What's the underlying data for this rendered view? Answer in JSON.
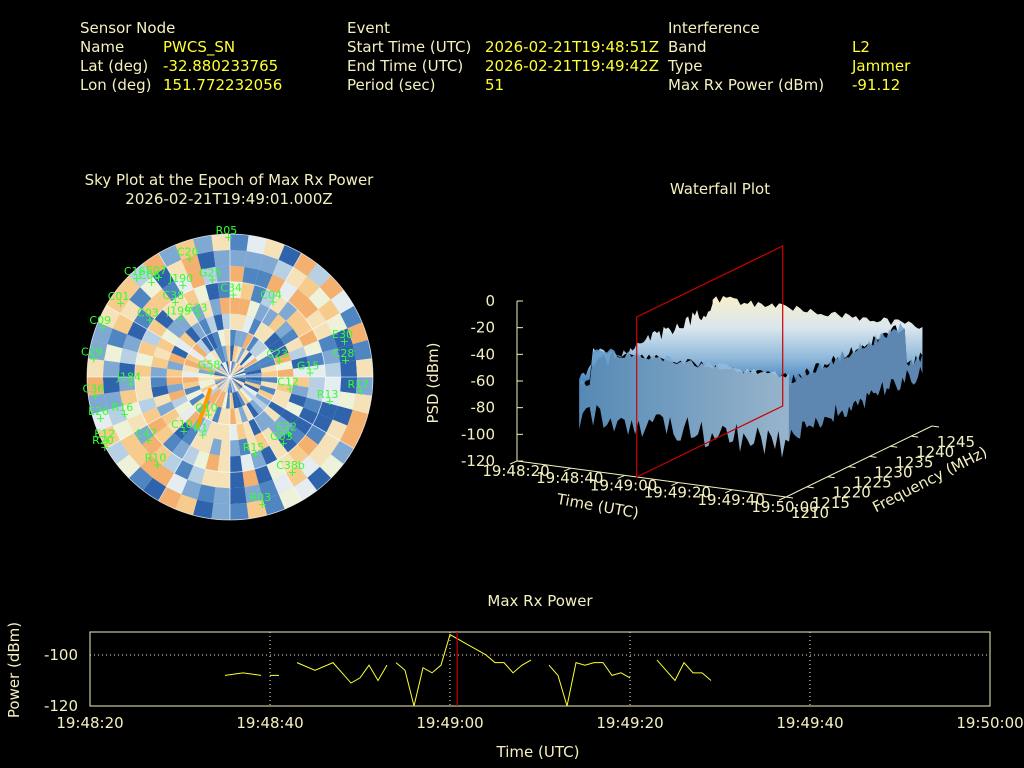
{
  "sensor": {
    "header": "Sensor Node",
    "name_label": "Name",
    "name_value": "PWCS_SN",
    "lat_label": "Lat (deg)",
    "lat_value": "-32.880233765",
    "lon_label": "Lon (deg)",
    "lon_value": "151.772232056"
  },
  "event": {
    "header": "Event",
    "start_label": "Start Time (UTC)",
    "start_value": "2026-02-21T19:48:51Z",
    "end_label": "End Time (UTC)",
    "end_value": "2026-02-21T19:49:42Z",
    "period_label": "Period (sec)",
    "period_value": "51"
  },
  "interference": {
    "header": "Interference",
    "band_label": "Band",
    "band_value": "L2",
    "type_label": "Type",
    "type_value": "Jammer",
    "power_label": "Max Rx Power (dBm)",
    "power_value": "-91.12"
  },
  "colors": {
    "background": "#000000",
    "label": "#f5f0c0",
    "value": "#ffff33",
    "satellite": "#33ff33",
    "jammer_track": "#ff9900",
    "epoch_marker": "#cc0000"
  },
  "chart_data": [
    {
      "type": "scatter",
      "title": "Sky Plot at the Epoch of Max Rx Power",
      "subtitle": "2026-02-21T19:49:01.000Z",
      "satellites": [
        {
          "id": "R05",
          "az": 1,
          "el": 2
        },
        {
          "id": "C20",
          "az": 343,
          "el": 12
        },
        {
          "id": "E07",
          "az": 326,
          "el": 14
        },
        {
          "id": "G25",
          "az": 352,
          "el": 28
        },
        {
          "id": "C16",
          "az": 318,
          "el": 6
        },
        {
          "id": "C06",
          "az": 322,
          "el": 14
        },
        {
          "id": "J190",
          "az": 335,
          "el": 26
        },
        {
          "id": "C01",
          "az": 305,
          "el": 9
        },
        {
          "id": "C38",
          "az": 326,
          "el": 33
        },
        {
          "id": "C09",
          "az": 292,
          "el": 6
        },
        {
          "id": "C03",
          "az": 307,
          "el": 30
        },
        {
          "id": "J199",
          "az": 323,
          "el": 43
        },
        {
          "id": "G23",
          "az": 336,
          "el": 47
        },
        {
          "id": "C34",
          "az": 5,
          "el": 38
        },
        {
          "id": "C04",
          "az": 32,
          "el": 34
        },
        {
          "id": "C29",
          "az": 278,
          "el": 6
        },
        {
          "id": "E30",
          "az": 73,
          "el": 12
        },
        {
          "id": "C28",
          "az": 82,
          "el": 14
        },
        {
          "id": "G58",
          "az": 290,
          "el": 80
        },
        {
          "id": "C23",
          "az": 73,
          "el": 55
        },
        {
          "id": "G15",
          "az": 87,
          "el": 37
        },
        {
          "id": "R17",
          "az": 96,
          "el": 5
        },
        {
          "id": "J184",
          "az": 266,
          "el": 30
        },
        {
          "id": "C36",
          "az": 262,
          "el": 7
        },
        {
          "id": "C12",
          "az": 100,
          "el": 49
        },
        {
          "id": "R13",
          "az": 103,
          "el": 23
        },
        {
          "id": "R16",
          "az": 250,
          "el": 22
        },
        {
          "id": "E26",
          "az": 252,
          "el": 7
        },
        {
          "id": "E12",
          "az": 242,
          "el": 5
        },
        {
          "id": "C47",
          "az": 231,
          "el": 27
        },
        {
          "id": "C10",
          "az": 218,
          "el": 47
        },
        {
          "id": "G10",
          "az": 205,
          "el": 64
        },
        {
          "id": "R20",
          "az": 240,
          "el": 2
        },
        {
          "id": "R1",
          "az": 202,
          "el": 51
        },
        {
          "id": "R10",
          "az": 218,
          "el": 20
        },
        {
          "id": "E22",
          "az": 132,
          "el": 37
        },
        {
          "id": "G03",
          "az": 139,
          "el": 35
        },
        {
          "id": "R15",
          "az": 159,
          "el": 38
        },
        {
          "id": "C38b",
          "az": 145,
          "el": 17
        },
        {
          "id": "R03",
          "az": 164,
          "el": 7
        }
      ],
      "jammer_track": {
        "az_start": 213,
        "el_start": 53,
        "az_end": 237,
        "el_end": 75
      }
    },
    {
      "type": "surface",
      "title": "Waterfall Plot",
      "zlabel": "PSD (dBm)",
      "xlabel": "Time (UTC)",
      "ylabel": "Frequency (MHz)",
      "zticks": [
        "0",
        "-20",
        "-40",
        "-60",
        "-80",
        "-100",
        "-120"
      ],
      "xticks": [
        "19:48:20",
        "19:48:40",
        "19:49:00",
        "19:49:20",
        "19:49:40",
        "19:50:00"
      ],
      "yticks": [
        "1210",
        "1215",
        "1220",
        "1225",
        "1230",
        "1235",
        "1240",
        "1245"
      ],
      "zlim": [
        -120,
        0
      ],
      "ylim": [
        1210,
        1245
      ],
      "peak_psd": -27,
      "floor_psd": -95,
      "band_mhz": [
        1212,
        1244
      ],
      "epoch_marker_time": "19:49:01"
    },
    {
      "type": "line",
      "title": "Max Rx Power",
      "xlabel": "Time (UTC)",
      "ylabel": "Power (dBm)",
      "xticks": [
        "19:48:20",
        "19:48:40",
        "19:49:00",
        "19:49:20",
        "19:49:40",
        "19:50:00"
      ],
      "yticks": [
        "-100",
        "-120"
      ],
      "ylim": [
        -120,
        -91
      ],
      "grid": true,
      "epoch_marker": "19:49:01",
      "segments": [
        [
          [
            15,
            -108
          ],
          [
            17,
            -107
          ],
          [
            19,
            -108
          ]
        ],
        [
          [
            20,
            -108
          ],
          [
            21,
            -108
          ]
        ],
        [
          [
            23,
            -103
          ],
          [
            25,
            -106
          ],
          [
            27,
            -103
          ],
          [
            28,
            -107
          ],
          [
            29,
            -111
          ],
          [
            30,
            -109
          ],
          [
            31,
            -104
          ],
          [
            32,
            -110
          ],
          [
            33,
            -104
          ]
        ],
        [
          [
            34,
            -103
          ],
          [
            35,
            -106
          ],
          [
            36,
            -120
          ],
          [
            37,
            -105
          ],
          [
            38,
            -107
          ],
          [
            39,
            -104
          ],
          [
            40,
            -92
          ],
          [
            41,
            -94
          ],
          [
            42,
            -96
          ],
          [
            43,
            -98
          ],
          [
            44,
            -100
          ],
          [
            45,
            -103
          ],
          [
            46,
            -103
          ],
          [
            47,
            -107
          ],
          [
            48,
            -104
          ],
          [
            49,
            -102
          ]
        ],
        [
          [
            51,
            -104
          ],
          [
            52,
            -108
          ],
          [
            53,
            -120
          ],
          [
            54,
            -103
          ],
          [
            55,
            -104
          ],
          [
            56,
            -103
          ],
          [
            57,
            -103
          ],
          [
            58,
            -108
          ],
          [
            59,
            -107
          ],
          [
            60,
            -109
          ]
        ],
        [
          [
            63,
            -102
          ],
          [
            64,
            -106
          ],
          [
            65,
            -110
          ],
          [
            66,
            -103
          ],
          [
            67,
            -107
          ],
          [
            68,
            -107
          ],
          [
            69,
            -110
          ]
        ]
      ]
    }
  ]
}
